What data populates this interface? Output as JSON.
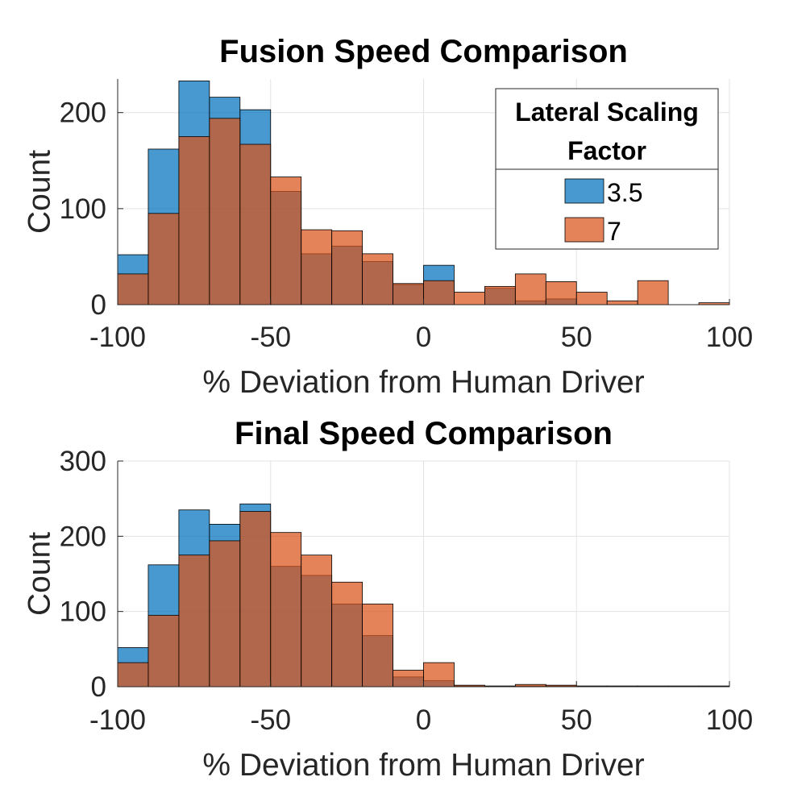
{
  "chart_data": [
    {
      "type": "histogram",
      "title": "Fusion Speed Comparison",
      "xlabel": "% Deviation from Human Driver",
      "ylabel": "Count",
      "xlim": [
        -100,
        100
      ],
      "ylim": [
        0,
        235
      ],
      "xticks": [
        -100,
        -50,
        0,
        50,
        100
      ],
      "xtick_labels": [
        "-100",
        "-50",
        "0",
        "50",
        "100"
      ],
      "yticks": [
        0,
        100,
        200
      ],
      "ytick_labels": [
        "0",
        "100",
        "200"
      ],
      "grid": true,
      "bin_edges": [
        -100,
        -90,
        -80,
        -70,
        -60,
        -50,
        -40,
        -30,
        -20,
        -10,
        0,
        10,
        20,
        30,
        40,
        50,
        60,
        70,
        80,
        90,
        100
      ],
      "legend": {
        "title_lines": [
          "Lateral Scaling",
          "Factor"
        ],
        "placement": "top-right"
      },
      "series": [
        {
          "name": "3.5",
          "color": "#0072BD",
          "values": [
            52,
            162,
            233,
            216,
            203,
            118,
            53,
            61,
            45,
            21,
            41,
            0,
            17,
            4,
            6,
            0,
            0,
            0,
            0,
            0
          ]
        },
        {
          "name": "7",
          "color": "#D95319",
          "values": [
            32,
            95,
            175,
            194,
            167,
            133,
            78,
            77,
            53,
            22,
            25,
            13,
            19,
            32,
            24,
            13,
            4,
            25,
            0,
            2
          ]
        }
      ]
    },
    {
      "type": "histogram",
      "title": "Final Speed Comparison",
      "xlabel": "% Deviation from Human Driver",
      "ylabel": "Count",
      "xlim": [
        -100,
        100
      ],
      "ylim": [
        0,
        300
      ],
      "xticks": [
        -100,
        -50,
        0,
        50,
        100
      ],
      "xtick_labels": [
        "-100",
        "-50",
        "0",
        "50",
        "100"
      ],
      "yticks": [
        0,
        100,
        200,
        300
      ],
      "ytick_labels": [
        "0",
        "100",
        "200",
        "300"
      ],
      "grid": true,
      "bin_edges": [
        -100,
        -90,
        -80,
        -70,
        -60,
        -50,
        -40,
        -30,
        -20,
        -10,
        0,
        10,
        20,
        30,
        40,
        50,
        60,
        70,
        80,
        90,
        100
      ],
      "series": [
        {
          "name": "3.5",
          "color": "#0072BD",
          "values": [
            52,
            162,
            235,
            216,
            243,
            160,
            148,
            110,
            68,
            13,
            8,
            1,
            0,
            1,
            1,
            0,
            0,
            0,
            0,
            0
          ]
        },
        {
          "name": "7",
          "color": "#D95319",
          "values": [
            32,
            95,
            175,
            194,
            233,
            205,
            175,
            139,
            110,
            22,
            32,
            2,
            1,
            3,
            2,
            1,
            1,
            1,
            1,
            1
          ]
        }
      ]
    }
  ]
}
